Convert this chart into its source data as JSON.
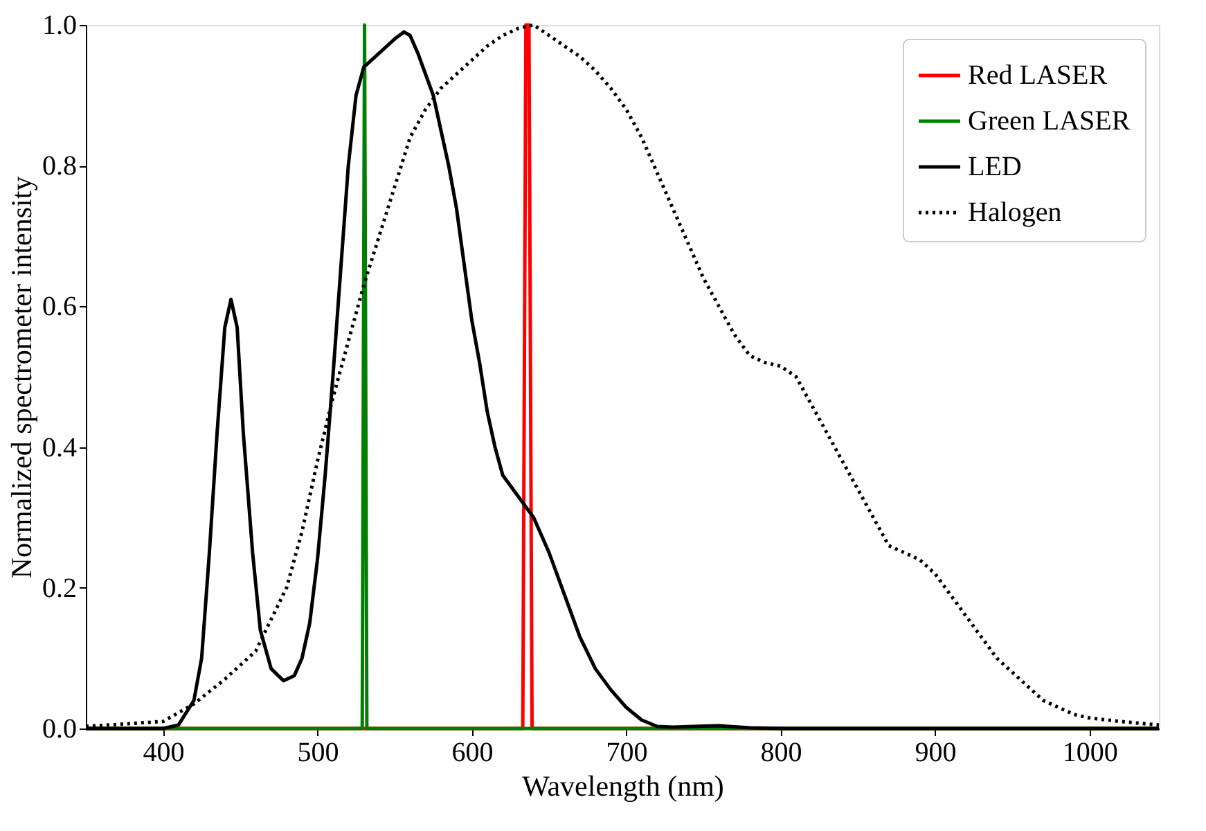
{
  "chart_data": {
    "type": "line",
    "xlabel": "Wavelength (nm)",
    "ylabel": "Normalized spectrometer intensity",
    "xlim": [
      350,
      1045
    ],
    "ylim": [
      0,
      1
    ],
    "xticks": [
      400,
      500,
      600,
      700,
      800,
      900,
      1000
    ],
    "yticks": [
      {
        "value": 0,
        "label": "0.0"
      },
      {
        "value": 0.2,
        "label": "0.2"
      },
      {
        "value": 0.4,
        "label": "0.4"
      },
      {
        "value": 0.6,
        "label": "0.6"
      },
      {
        "value": 0.8,
        "label": "0.8"
      },
      {
        "value": 1,
        "label": "1.0"
      }
    ],
    "legend": "top right",
    "series": [
      {
        "name": "Red LASER",
        "color": "#ff0000",
        "line_style": "solid",
        "x": [
          350,
          633,
          635,
          637,
          639,
          1045
        ],
        "values": [
          0,
          0,
          1,
          1,
          0,
          0
        ]
      },
      {
        "name": "Green LASER",
        "color": "#008000",
        "line_style": "solid",
        "x": [
          350,
          529,
          530.5,
          532,
          1045
        ],
        "values": [
          0,
          0,
          1,
          0,
          0
        ]
      },
      {
        "name": "LED",
        "color": "#000000",
        "line_style": "solid",
        "x": [
          350,
          400,
          410,
          420,
          425,
          430,
          435,
          440,
          444,
          448,
          452,
          458,
          463,
          470,
          478,
          485,
          490,
          495,
          500,
          505,
          510,
          515,
          520,
          525,
          530,
          535,
          540,
          545,
          550,
          556,
          560,
          565,
          570,
          575,
          580,
          585,
          590,
          595,
          600,
          605,
          610,
          615,
          620,
          630,
          640,
          650,
          660,
          670,
          680,
          690,
          700,
          710,
          720,
          730,
          760,
          780,
          800,
          1045
        ],
        "values": [
          0,
          0,
          0.005,
          0.04,
          0.1,
          0.25,
          0.42,
          0.57,
          0.61,
          0.57,
          0.42,
          0.25,
          0.14,
          0.085,
          0.068,
          0.075,
          0.1,
          0.15,
          0.24,
          0.36,
          0.5,
          0.65,
          0.8,
          0.9,
          0.94,
          0.95,
          0.96,
          0.97,
          0.98,
          0.99,
          0.985,
          0.96,
          0.93,
          0.9,
          0.85,
          0.8,
          0.74,
          0.66,
          0.58,
          0.52,
          0.45,
          0.4,
          0.36,
          0.33,
          0.3,
          0.25,
          0.19,
          0.13,
          0.085,
          0.055,
          0.03,
          0.012,
          0.003,
          0.002,
          0.004,
          0.001,
          0,
          0
        ]
      },
      {
        "name": "Halogen",
        "color": "#000000",
        "line_style": "dotted",
        "x": [
          350,
          400,
          420,
          440,
          460,
          480,
          490,
          500,
          510,
          520,
          530,
          540,
          550,
          560,
          570,
          580,
          590,
          600,
          610,
          620,
          630,
          640,
          650,
          660,
          670,
          680,
          690,
          700,
          710,
          720,
          730,
          740,
          750,
          760,
          770,
          780,
          790,
          800,
          810,
          820,
          830,
          840,
          850,
          860,
          870,
          880,
          890,
          900,
          910,
          920,
          930,
          940,
          950,
          960,
          970,
          980,
          990,
          1000,
          1020,
          1045
        ],
        "values": [
          0.003,
          0.01,
          0.035,
          0.07,
          0.11,
          0.2,
          0.28,
          0.38,
          0.47,
          0.55,
          0.63,
          0.7,
          0.77,
          0.84,
          0.88,
          0.91,
          0.93,
          0.95,
          0.97,
          0.985,
          0.995,
          1.0,
          0.985,
          0.97,
          0.955,
          0.935,
          0.91,
          0.88,
          0.84,
          0.79,
          0.74,
          0.69,
          0.64,
          0.6,
          0.56,
          0.53,
          0.52,
          0.515,
          0.5,
          0.46,
          0.42,
          0.38,
          0.34,
          0.3,
          0.26,
          0.25,
          0.24,
          0.22,
          0.19,
          0.16,
          0.13,
          0.1,
          0.08,
          0.06,
          0.04,
          0.03,
          0.02,
          0.015,
          0.01,
          0.005
        ]
      }
    ]
  }
}
